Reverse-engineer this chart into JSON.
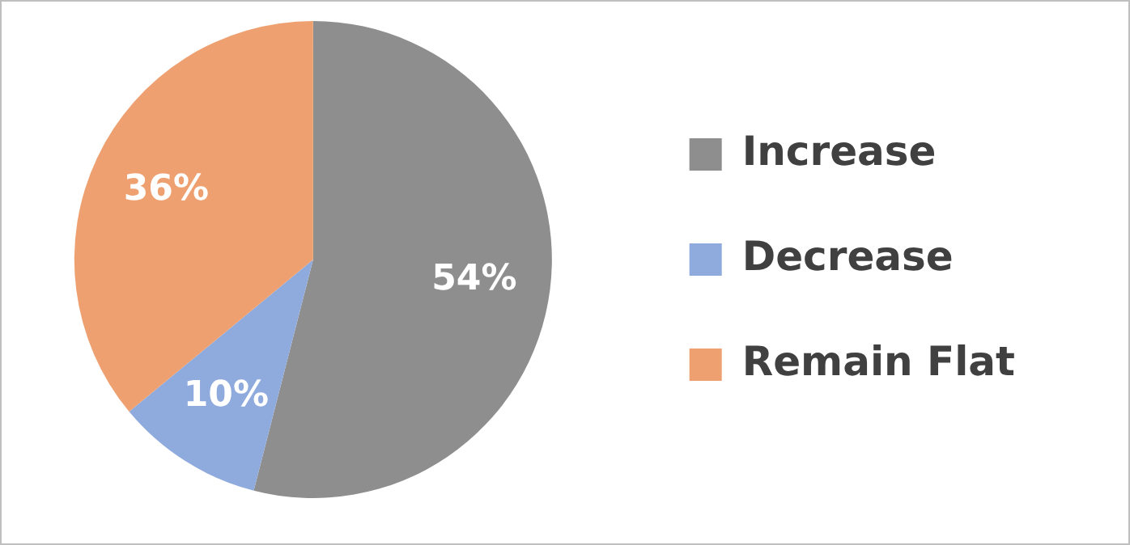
{
  "chart_data": {
    "type": "pie",
    "categories": [
      "Increase",
      "Decrease",
      "Remain Flat"
    ],
    "values": [
      54,
      10,
      36
    ],
    "value_labels": [
      "54%",
      "10%",
      "36%"
    ],
    "colors": [
      "#8e8e8e",
      "#8faadc",
      "#eea070"
    ],
    "legend": "right"
  }
}
